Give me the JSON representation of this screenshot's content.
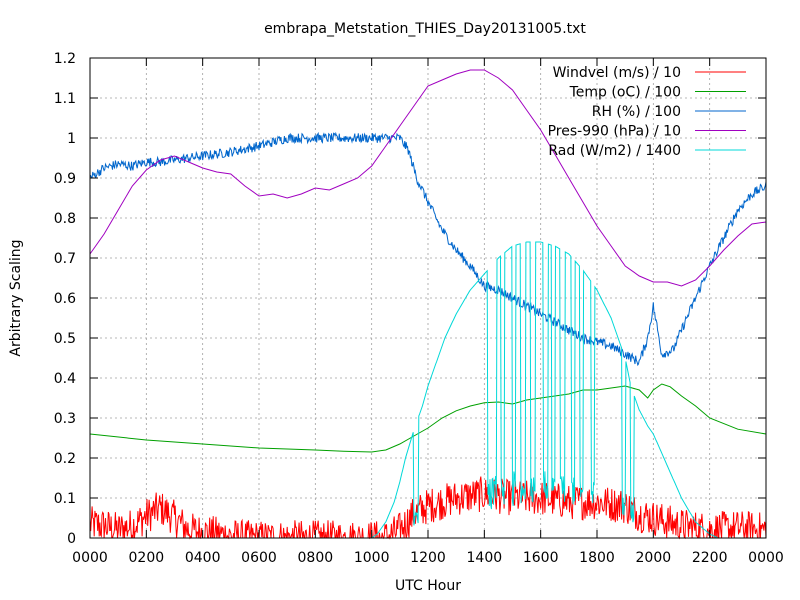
{
  "chart_data": {
    "type": "line",
    "title": "embrapa_Metstation_THIES_Day20131005.txt",
    "xlabel": "UTC Hour",
    "ylabel": "Arbitrary Scaling",
    "xlim": [
      0,
      24
    ],
    "ylim": [
      0,
      1.2
    ],
    "x_ticks": [
      0,
      2,
      4,
      6,
      8,
      10,
      12,
      14,
      16,
      18,
      20,
      22,
      24
    ],
    "x_tick_labels": [
      "0000",
      "0200",
      "0400",
      "0600",
      "0800",
      "1000",
      "1200",
      "1400",
      "1600",
      "1800",
      "2000",
      "2200",
      "0000"
    ],
    "y_ticks": [
      0,
      0.1,
      0.2,
      0.3,
      0.4,
      0.5,
      0.6,
      0.7,
      0.8,
      0.9,
      1,
      1.1,
      1.2
    ],
    "y_tick_labels": [
      "0",
      "0.1",
      "0.2",
      "0.3",
      "0.4",
      "0.5",
      "0.6",
      "0.7",
      "0.8",
      "0.9",
      "1",
      "1.1",
      "1.2"
    ],
    "grid": true,
    "legend_position": "top-right",
    "series": [
      {
        "name": "Windvel (m/s) / 10",
        "color": "#ff0000",
        "noise": 0.045,
        "x": [
          0,
          0.5,
          1,
          1.5,
          2,
          2.5,
          3,
          3.5,
          4,
          4.5,
          5,
          5.5,
          6,
          8,
          9.5,
          10.5,
          11,
          11.5,
          12,
          13,
          14,
          15,
          16,
          17,
          18,
          19,
          19.5,
          20,
          20.5,
          21,
          22,
          23,
          24
        ],
        "y": [
          0.035,
          0.03,
          0.02,
          0.03,
          0.055,
          0.075,
          0.05,
          0.02,
          0.015,
          0.01,
          0.005,
          0,
          0,
          0,
          0,
          0,
          0.02,
          0.06,
          0.08,
          0.1,
          0.11,
          0.1,
          0.1,
          0.09,
          0.09,
          0.08,
          0.06,
          0.05,
          0.04,
          0.03,
          0.02,
          0.025,
          0.02
        ]
      },
      {
        "name": "Temp (oC) / 100",
        "color": "#00a000",
        "noise": 0,
        "x": [
          0,
          2,
          4,
          6,
          8,
          9,
          10,
          10.5,
          11,
          11.5,
          12,
          12.5,
          13,
          13.5,
          14,
          14.5,
          15,
          15.5,
          16,
          16.5,
          17,
          17.5,
          18,
          18.5,
          19,
          19.5,
          19.8,
          20,
          20.3,
          20.6,
          21,
          21.5,
          22,
          23,
          24
        ],
        "y": [
          0.26,
          0.245,
          0.235,
          0.225,
          0.22,
          0.217,
          0.215,
          0.22,
          0.235,
          0.255,
          0.275,
          0.3,
          0.318,
          0.33,
          0.338,
          0.34,
          0.335,
          0.345,
          0.35,
          0.355,
          0.36,
          0.37,
          0.37,
          0.375,
          0.38,
          0.37,
          0.35,
          0.37,
          0.385,
          0.378,
          0.355,
          0.33,
          0.3,
          0.272,
          0.26
        ]
      },
      {
        "name": "RH (%) / 100",
        "color": "#0066cc",
        "noise": 0.012,
        "x": [
          0,
          0.5,
          1,
          1.5,
          2,
          2.5,
          3,
          4,
          5,
          6,
          7,
          8,
          9,
          10,
          11,
          11.3,
          11.6,
          12,
          12.5,
          13,
          13.5,
          14,
          14.5,
          15,
          15.5,
          16,
          16.5,
          17,
          17.5,
          18,
          18.5,
          19,
          19.5,
          19.8,
          20,
          20.3,
          20.7,
          21,
          21.5,
          22,
          22.5,
          23,
          23.5,
          24
        ],
        "y": [
          0.9,
          0.925,
          0.935,
          0.93,
          0.94,
          0.94,
          0.945,
          0.955,
          0.965,
          0.98,
          1,
          1,
          1,
          1,
          1,
          0.97,
          0.9,
          0.84,
          0.77,
          0.72,
          0.68,
          0.63,
          0.62,
          0.6,
          0.58,
          0.56,
          0.54,
          0.52,
          0.5,
          0.49,
          0.48,
          0.46,
          0.44,
          0.5,
          0.58,
          0.46,
          0.47,
          0.52,
          0.6,
          0.68,
          0.75,
          0.82,
          0.86,
          0.88
        ]
      },
      {
        "name": "Pres-990 (hPa) / 10",
        "color": "#a000c0",
        "noise": 0,
        "x": [
          0,
          0.5,
          1,
          1.5,
          2,
          2.5,
          3,
          3.5,
          4,
          4.5,
          5,
          5.5,
          6,
          6.5,
          7,
          7.5,
          8,
          8.5,
          9,
          9.5,
          10,
          10.5,
          11,
          11.5,
          12,
          12.5,
          13,
          13.5,
          14,
          14.5,
          15,
          15.5,
          16,
          16.5,
          17,
          17.5,
          18,
          18.5,
          19,
          19.5,
          20,
          20.5,
          21,
          21.5,
          22,
          22.5,
          23,
          23.5,
          24
        ],
        "y": [
          0.71,
          0.76,
          0.82,
          0.88,
          0.92,
          0.945,
          0.955,
          0.94,
          0.925,
          0.915,
          0.91,
          0.88,
          0.855,
          0.86,
          0.85,
          0.86,
          0.875,
          0.87,
          0.885,
          0.9,
          0.93,
          0.98,
          1.03,
          1.08,
          1.13,
          1.145,
          1.16,
          1.17,
          1.17,
          1.15,
          1.12,
          1.07,
          1.02,
          0.96,
          0.9,
          0.84,
          0.78,
          0.73,
          0.68,
          0.655,
          0.64,
          0.64,
          0.63,
          0.645,
          0.68,
          0.72,
          0.755,
          0.785,
          0.79
        ]
      },
      {
        "name": "Rad (W/m2) / 1400",
        "color": "#00d8d8",
        "noise": 0,
        "dropouts": [
          [
            11.45,
            11.7
          ],
          [
            14.05,
            14.5
          ],
          [
            14.55,
            14.75
          ],
          [
            14.95,
            15.15
          ],
          [
            15.25,
            15.5
          ],
          [
            15.6,
            15.85
          ],
          [
            16.05,
            16.3
          ],
          [
            16.35,
            16.55
          ],
          [
            16.65,
            16.9
          ],
          [
            17.05,
            17.25
          ],
          [
            17.35,
            17.55
          ],
          [
            17.75,
            17.95
          ],
          [
            18.85,
            19.05
          ],
          [
            19.15,
            19.35
          ]
        ],
        "x": [
          0,
          10,
          10.2,
          10.5,
          10.8,
          11,
          11.2,
          11.5,
          11.8,
          12,
          12.3,
          12.6,
          13,
          13.5,
          14,
          14.5,
          15,
          15.5,
          16,
          16.5,
          17,
          17.5,
          18,
          18.5,
          19,
          19.2,
          19.5,
          19.8,
          20,
          20.5,
          21,
          21.5,
          22,
          22.3,
          24
        ],
        "y": [
          0,
          0,
          0.01,
          0.04,
          0.09,
          0.14,
          0.2,
          0.27,
          0.33,
          0.38,
          0.44,
          0.5,
          0.56,
          0.62,
          0.66,
          0.7,
          0.73,
          0.74,
          0.74,
          0.73,
          0.71,
          0.67,
          0.62,
          0.55,
          0.45,
          0.38,
          0.32,
          0.28,
          0.26,
          0.18,
          0.1,
          0.04,
          0.01,
          0,
          0
        ]
      }
    ]
  }
}
